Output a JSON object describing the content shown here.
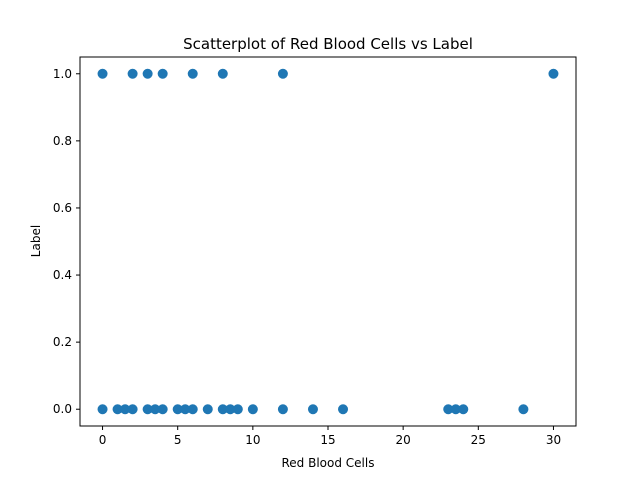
{
  "chart_data": {
    "type": "scatter",
    "title": "Scatterplot of Red Blood Cells vs Label",
    "xlabel": "Red Blood Cells",
    "ylabel": "Label",
    "xlim": [
      -1.5,
      31.5
    ],
    "ylim": [
      -0.05,
      1.05
    ],
    "xticks": [
      0,
      5,
      10,
      15,
      20,
      25,
      30
    ],
    "yticks": [
      0.0,
      0.2,
      0.4,
      0.6,
      0.8,
      1.0
    ],
    "xtick_labels": [
      "0",
      "5",
      "10",
      "15",
      "20",
      "25",
      "30"
    ],
    "ytick_labels": [
      "0.0",
      "0.2",
      "0.4",
      "0.6",
      "0.8",
      "1.0"
    ],
    "grid": false,
    "marker_color": "#1f77b4",
    "points": [
      {
        "x": 0,
        "y": 1
      },
      {
        "x": 2,
        "y": 1
      },
      {
        "x": 3,
        "y": 1
      },
      {
        "x": 4,
        "y": 1
      },
      {
        "x": 6,
        "y": 1
      },
      {
        "x": 8,
        "y": 1
      },
      {
        "x": 12,
        "y": 1
      },
      {
        "x": 30,
        "y": 1
      },
      {
        "x": 0,
        "y": 0
      },
      {
        "x": 1,
        "y": 0
      },
      {
        "x": 1.5,
        "y": 0
      },
      {
        "x": 2,
        "y": 0
      },
      {
        "x": 3,
        "y": 0
      },
      {
        "x": 3.5,
        "y": 0
      },
      {
        "x": 4,
        "y": 0
      },
      {
        "x": 5,
        "y": 0
      },
      {
        "x": 5.5,
        "y": 0
      },
      {
        "x": 6,
        "y": 0
      },
      {
        "x": 7,
        "y": 0
      },
      {
        "x": 8,
        "y": 0
      },
      {
        "x": 8.5,
        "y": 0
      },
      {
        "x": 9,
        "y": 0
      },
      {
        "x": 10,
        "y": 0
      },
      {
        "x": 12,
        "y": 0
      },
      {
        "x": 14,
        "y": 0
      },
      {
        "x": 16,
        "y": 0
      },
      {
        "x": 23,
        "y": 0
      },
      {
        "x": 23.5,
        "y": 0
      },
      {
        "x": 24,
        "y": 0
      },
      {
        "x": 28,
        "y": 0
      }
    ]
  }
}
